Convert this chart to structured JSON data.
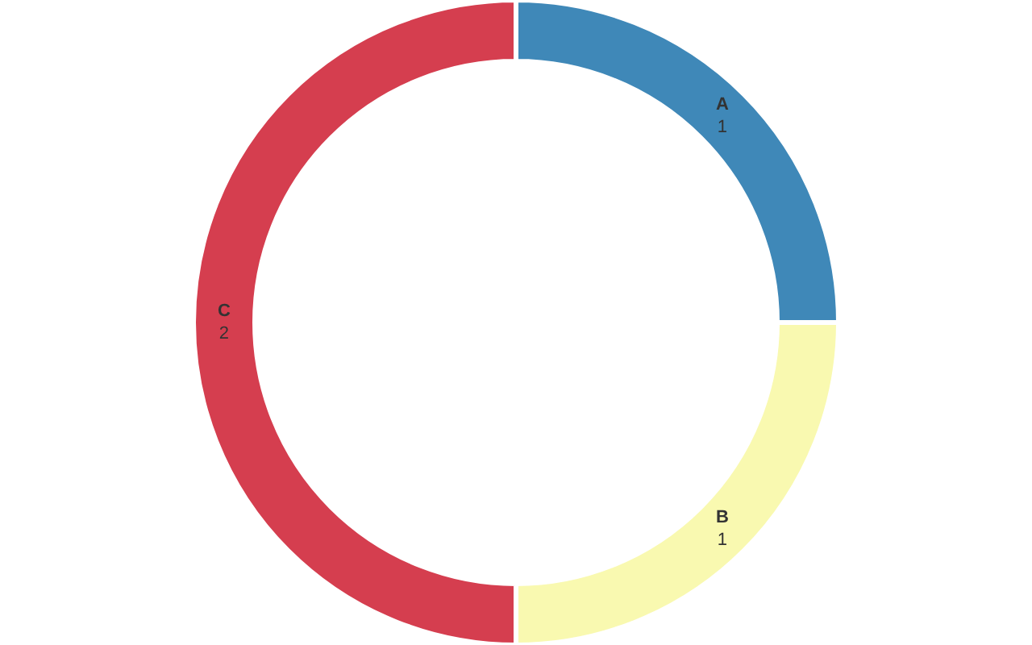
{
  "chart_data": {
    "type": "donut",
    "categories": [
      "A",
      "B",
      "C"
    ],
    "values": [
      1,
      1,
      2
    ],
    "colors": [
      "#3f88b8",
      "#f9f9b0",
      "#d53e4f"
    ],
    "data_labels": true,
    "legend": false
  }
}
